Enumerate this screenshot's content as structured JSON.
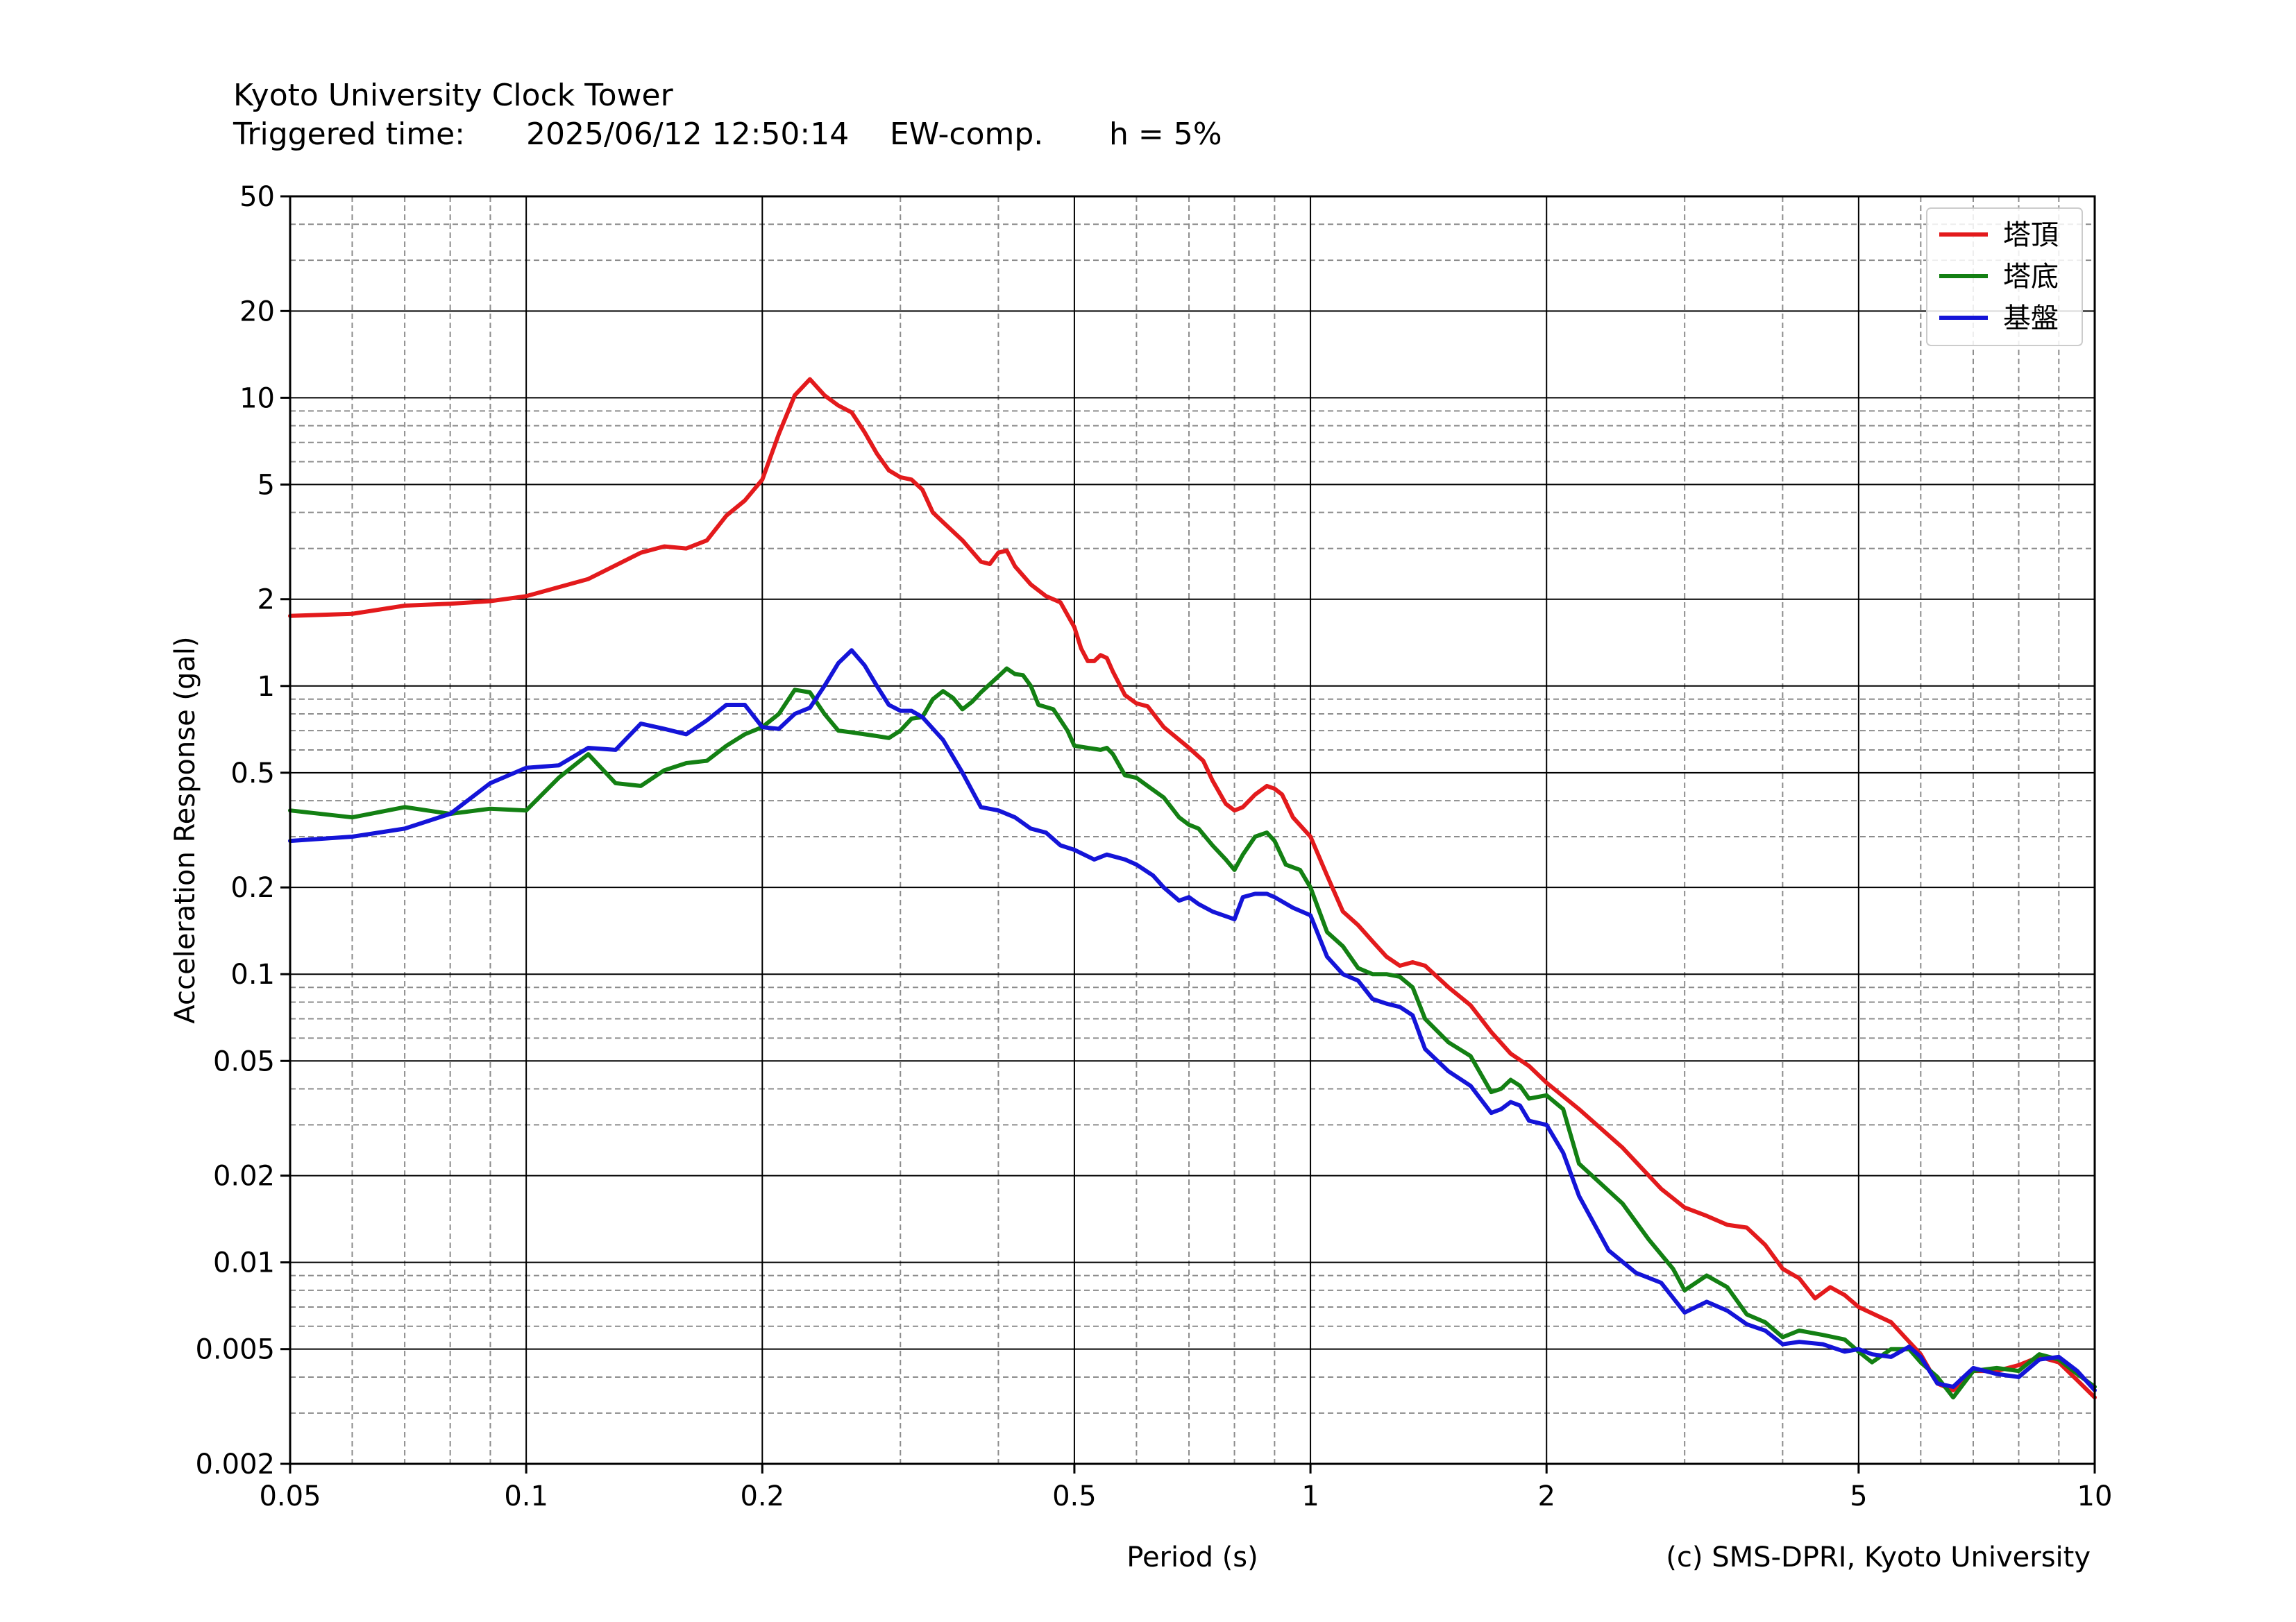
{
  "header": {
    "title": "Kyoto University Clock Tower",
    "triggered_label": "Triggered time:",
    "triggered_time": "2025/06/12 12:50:14",
    "component": "EW-comp.",
    "damping": "h = 5%"
  },
  "credit": "(c) SMS-DPRI, Kyoto University",
  "chart_data": {
    "type": "line",
    "xscale": "log",
    "yscale": "log",
    "xlabel": "Period (s)",
    "ylabel": "Acceleration Response (gal)",
    "xlim": [
      0.05,
      10
    ],
    "ylim": [
      0.002,
      50
    ],
    "grid": true,
    "legend_position": "top-right",
    "xticks": [
      0.05,
      0.1,
      0.2,
      0.5,
      1,
      2,
      5,
      10
    ],
    "xtick_labels": [
      "0.05",
      "0.1",
      "0.2",
      "0.5",
      "1",
      "2",
      "5",
      "10"
    ],
    "yticks": [
      0.002,
      0.005,
      0.01,
      0.02,
      0.05,
      0.1,
      0.2,
      0.5,
      1,
      2,
      5,
      10,
      20,
      50
    ],
    "ytick_labels": [
      "0.002",
      "0.005",
      "0.01",
      "0.02",
      "0.05",
      "0.1",
      "0.2",
      "0.5",
      "1",
      "2",
      "5",
      "10",
      "20",
      "50"
    ],
    "series": [
      {
        "name": "塔頂",
        "color": "#e31a1c",
        "points": [
          [
            0.05,
            1.75
          ],
          [
            0.06,
            1.78
          ],
          [
            0.07,
            1.9
          ],
          [
            0.08,
            1.93
          ],
          [
            0.09,
            1.97
          ],
          [
            0.1,
            2.05
          ],
          [
            0.12,
            2.35
          ],
          [
            0.14,
            2.9
          ],
          [
            0.15,
            3.05
          ],
          [
            0.16,
            3.0
          ],
          [
            0.17,
            3.2
          ],
          [
            0.18,
            3.9
          ],
          [
            0.19,
            4.4
          ],
          [
            0.2,
            5.2
          ],
          [
            0.21,
            7.5
          ],
          [
            0.22,
            10.2
          ],
          [
            0.23,
            11.6
          ],
          [
            0.24,
            10.2
          ],
          [
            0.25,
            9.4
          ],
          [
            0.26,
            8.9
          ],
          [
            0.27,
            7.6
          ],
          [
            0.28,
            6.4
          ],
          [
            0.29,
            5.6
          ],
          [
            0.3,
            5.3
          ],
          [
            0.31,
            5.2
          ],
          [
            0.32,
            4.8
          ],
          [
            0.33,
            4.0
          ],
          [
            0.34,
            3.7
          ],
          [
            0.36,
            3.2
          ],
          [
            0.38,
            2.7
          ],
          [
            0.39,
            2.65
          ],
          [
            0.4,
            2.9
          ],
          [
            0.41,
            2.95
          ],
          [
            0.42,
            2.6
          ],
          [
            0.44,
            2.25
          ],
          [
            0.46,
            2.05
          ],
          [
            0.48,
            1.95
          ],
          [
            0.5,
            1.6
          ],
          [
            0.51,
            1.35
          ],
          [
            0.52,
            1.22
          ],
          [
            0.53,
            1.22
          ],
          [
            0.54,
            1.28
          ],
          [
            0.55,
            1.25
          ],
          [
            0.56,
            1.12
          ],
          [
            0.58,
            0.93
          ],
          [
            0.6,
            0.87
          ],
          [
            0.62,
            0.85
          ],
          [
            0.65,
            0.72
          ],
          [
            0.7,
            0.61
          ],
          [
            0.73,
            0.55
          ],
          [
            0.75,
            0.47
          ],
          [
            0.78,
            0.39
          ],
          [
            0.8,
            0.37
          ],
          [
            0.82,
            0.38
          ],
          [
            0.85,
            0.42
          ],
          [
            0.88,
            0.45
          ],
          [
            0.9,
            0.44
          ],
          [
            0.92,
            0.42
          ],
          [
            0.95,
            0.35
          ],
          [
            1.0,
            0.3
          ],
          [
            1.05,
            0.22
          ],
          [
            1.1,
            0.165
          ],
          [
            1.15,
            0.148
          ],
          [
            1.2,
            0.13
          ],
          [
            1.25,
            0.115
          ],
          [
            1.3,
            0.107
          ],
          [
            1.35,
            0.11
          ],
          [
            1.4,
            0.107
          ],
          [
            1.5,
            0.09
          ],
          [
            1.6,
            0.078
          ],
          [
            1.7,
            0.063
          ],
          [
            1.8,
            0.053
          ],
          [
            1.9,
            0.048
          ],
          [
            2.0,
            0.042
          ],
          [
            2.2,
            0.034
          ],
          [
            2.5,
            0.025
          ],
          [
            2.8,
            0.018
          ],
          [
            3.0,
            0.0155
          ],
          [
            3.2,
            0.0145
          ],
          [
            3.4,
            0.0135
          ],
          [
            3.6,
            0.0132
          ],
          [
            3.8,
            0.0115
          ],
          [
            4.0,
            0.0095
          ],
          [
            4.2,
            0.0088
          ],
          [
            4.4,
            0.0075
          ],
          [
            4.6,
            0.0082
          ],
          [
            4.8,
            0.0077
          ],
          [
            5.0,
            0.007
          ],
          [
            5.5,
            0.0062
          ],
          [
            6.0,
            0.0048
          ],
          [
            6.3,
            0.0038
          ],
          [
            6.6,
            0.0036
          ],
          [
            7.0,
            0.0042
          ],
          [
            7.5,
            0.0042
          ],
          [
            8.0,
            0.0044
          ],
          [
            8.5,
            0.0047
          ],
          [
            9.0,
            0.0045
          ],
          [
            9.5,
            0.0039
          ],
          [
            10.0,
            0.0034
          ]
        ]
      },
      {
        "name": "塔底",
        "color": "#138013",
        "points": [
          [
            0.05,
            0.37
          ],
          [
            0.06,
            0.35
          ],
          [
            0.07,
            0.38
          ],
          [
            0.08,
            0.36
          ],
          [
            0.09,
            0.375
          ],
          [
            0.1,
            0.37
          ],
          [
            0.11,
            0.48
          ],
          [
            0.12,
            0.58
          ],
          [
            0.13,
            0.46
          ],
          [
            0.14,
            0.45
          ],
          [
            0.15,
            0.51
          ],
          [
            0.16,
            0.54
          ],
          [
            0.17,
            0.55
          ],
          [
            0.18,
            0.62
          ],
          [
            0.19,
            0.68
          ],
          [
            0.2,
            0.72
          ],
          [
            0.21,
            0.8
          ],
          [
            0.22,
            0.97
          ],
          [
            0.23,
            0.95
          ],
          [
            0.24,
            0.8
          ],
          [
            0.25,
            0.7
          ],
          [
            0.26,
            0.69
          ],
          [
            0.27,
            0.68
          ],
          [
            0.28,
            0.67
          ],
          [
            0.29,
            0.66
          ],
          [
            0.3,
            0.7
          ],
          [
            0.31,
            0.77
          ],
          [
            0.32,
            0.78
          ],
          [
            0.33,
            0.9
          ],
          [
            0.34,
            0.96
          ],
          [
            0.35,
            0.91
          ],
          [
            0.36,
            0.83
          ],
          [
            0.37,
            0.88
          ],
          [
            0.38,
            0.95
          ],
          [
            0.4,
            1.08
          ],
          [
            0.41,
            1.15
          ],
          [
            0.42,
            1.1
          ],
          [
            0.43,
            1.09
          ],
          [
            0.44,
            1.0
          ],
          [
            0.45,
            0.86
          ],
          [
            0.47,
            0.83
          ],
          [
            0.49,
            0.7
          ],
          [
            0.5,
            0.62
          ],
          [
            0.52,
            0.61
          ],
          [
            0.54,
            0.6
          ],
          [
            0.55,
            0.61
          ],
          [
            0.56,
            0.58
          ],
          [
            0.58,
            0.49
          ],
          [
            0.6,
            0.48
          ],
          [
            0.62,
            0.45
          ],
          [
            0.65,
            0.41
          ],
          [
            0.68,
            0.35
          ],
          [
            0.7,
            0.33
          ],
          [
            0.72,
            0.32
          ],
          [
            0.75,
            0.28
          ],
          [
            0.78,
            0.25
          ],
          [
            0.8,
            0.23
          ],
          [
            0.82,
            0.26
          ],
          [
            0.85,
            0.3
          ],
          [
            0.88,
            0.31
          ],
          [
            0.9,
            0.29
          ],
          [
            0.93,
            0.24
          ],
          [
            0.97,
            0.23
          ],
          [
            1.0,
            0.2
          ],
          [
            1.05,
            0.14
          ],
          [
            1.1,
            0.125
          ],
          [
            1.15,
            0.105
          ],
          [
            1.2,
            0.1
          ],
          [
            1.25,
            0.1
          ],
          [
            1.3,
            0.098
          ],
          [
            1.35,
            0.09
          ],
          [
            1.4,
            0.07
          ],
          [
            1.5,
            0.058
          ],
          [
            1.6,
            0.052
          ],
          [
            1.7,
            0.039
          ],
          [
            1.75,
            0.04
          ],
          [
            1.8,
            0.043
          ],
          [
            1.85,
            0.041
          ],
          [
            1.9,
            0.037
          ],
          [
            2.0,
            0.038
          ],
          [
            2.1,
            0.034
          ],
          [
            2.2,
            0.022
          ],
          [
            2.5,
            0.016
          ],
          [
            2.7,
            0.012
          ],
          [
            2.9,
            0.0095
          ],
          [
            3.0,
            0.008
          ],
          [
            3.2,
            0.009
          ],
          [
            3.4,
            0.0082
          ],
          [
            3.6,
            0.0066
          ],
          [
            3.8,
            0.0062
          ],
          [
            4.0,
            0.0055
          ],
          [
            4.2,
            0.0058
          ],
          [
            4.5,
            0.0056
          ],
          [
            4.8,
            0.0054
          ],
          [
            5.0,
            0.0049
          ],
          [
            5.2,
            0.0045
          ],
          [
            5.5,
            0.005
          ],
          [
            5.8,
            0.005
          ],
          [
            6.0,
            0.0045
          ],
          [
            6.3,
            0.004
          ],
          [
            6.6,
            0.0034
          ],
          [
            7.0,
            0.0042
          ],
          [
            7.5,
            0.0043
          ],
          [
            8.0,
            0.0042
          ],
          [
            8.5,
            0.0048
          ],
          [
            9.0,
            0.0046
          ],
          [
            9.5,
            0.0041
          ],
          [
            10.0,
            0.0037
          ]
        ]
      },
      {
        "name": "基盤",
        "color": "#1414d8",
        "points": [
          [
            0.05,
            0.29
          ],
          [
            0.06,
            0.3
          ],
          [
            0.07,
            0.32
          ],
          [
            0.08,
            0.36
          ],
          [
            0.09,
            0.46
          ],
          [
            0.1,
            0.52
          ],
          [
            0.11,
            0.53
          ],
          [
            0.12,
            0.61
          ],
          [
            0.13,
            0.6
          ],
          [
            0.14,
            0.74
          ],
          [
            0.15,
            0.71
          ],
          [
            0.16,
            0.68
          ],
          [
            0.17,
            0.76
          ],
          [
            0.18,
            0.86
          ],
          [
            0.19,
            0.86
          ],
          [
            0.2,
            0.72
          ],
          [
            0.21,
            0.71
          ],
          [
            0.22,
            0.8
          ],
          [
            0.23,
            0.84
          ],
          [
            0.24,
            1.0
          ],
          [
            0.25,
            1.2
          ],
          [
            0.26,
            1.33
          ],
          [
            0.27,
            1.18
          ],
          [
            0.28,
            1.0
          ],
          [
            0.29,
            0.86
          ],
          [
            0.3,
            0.82
          ],
          [
            0.31,
            0.82
          ],
          [
            0.32,
            0.78
          ],
          [
            0.34,
            0.65
          ],
          [
            0.36,
            0.5
          ],
          [
            0.38,
            0.38
          ],
          [
            0.4,
            0.37
          ],
          [
            0.42,
            0.35
          ],
          [
            0.44,
            0.32
          ],
          [
            0.46,
            0.31
          ],
          [
            0.48,
            0.28
          ],
          [
            0.5,
            0.27
          ],
          [
            0.53,
            0.25
          ],
          [
            0.55,
            0.26
          ],
          [
            0.58,
            0.25
          ],
          [
            0.6,
            0.24
          ],
          [
            0.63,
            0.22
          ],
          [
            0.65,
            0.2
          ],
          [
            0.68,
            0.18
          ],
          [
            0.7,
            0.185
          ],
          [
            0.72,
            0.175
          ],
          [
            0.75,
            0.165
          ],
          [
            0.8,
            0.155
          ],
          [
            0.82,
            0.185
          ],
          [
            0.85,
            0.19
          ],
          [
            0.88,
            0.19
          ],
          [
            0.9,
            0.185
          ],
          [
            0.95,
            0.17
          ],
          [
            1.0,
            0.16
          ],
          [
            1.05,
            0.115
          ],
          [
            1.1,
            0.1
          ],
          [
            1.15,
            0.095
          ],
          [
            1.2,
            0.082
          ],
          [
            1.25,
            0.079
          ],
          [
            1.3,
            0.077
          ],
          [
            1.35,
            0.072
          ],
          [
            1.4,
            0.055
          ],
          [
            1.5,
            0.046
          ],
          [
            1.6,
            0.041
          ],
          [
            1.7,
            0.033
          ],
          [
            1.75,
            0.034
          ],
          [
            1.8,
            0.036
          ],
          [
            1.85,
            0.035
          ],
          [
            1.9,
            0.031
          ],
          [
            2.0,
            0.03
          ],
          [
            2.1,
            0.024
          ],
          [
            2.2,
            0.017
          ],
          [
            2.4,
            0.011
          ],
          [
            2.6,
            0.0092
          ],
          [
            2.8,
            0.0085
          ],
          [
            3.0,
            0.0067
          ],
          [
            3.2,
            0.0073
          ],
          [
            3.4,
            0.0068
          ],
          [
            3.6,
            0.0061
          ],
          [
            3.8,
            0.0058
          ],
          [
            4.0,
            0.0052
          ],
          [
            4.2,
            0.0053
          ],
          [
            4.5,
            0.0052
          ],
          [
            4.8,
            0.0049
          ],
          [
            5.0,
            0.005
          ],
          [
            5.2,
            0.0048
          ],
          [
            5.5,
            0.0047
          ],
          [
            5.8,
            0.0051
          ],
          [
            6.0,
            0.0047
          ],
          [
            6.3,
            0.0038
          ],
          [
            6.6,
            0.0037
          ],
          [
            7.0,
            0.0043
          ],
          [
            7.5,
            0.0041
          ],
          [
            8.0,
            0.004
          ],
          [
            8.5,
            0.0046
          ],
          [
            9.0,
            0.0047
          ],
          [
            9.5,
            0.0042
          ],
          [
            10.0,
            0.0036
          ]
        ]
      }
    ]
  }
}
